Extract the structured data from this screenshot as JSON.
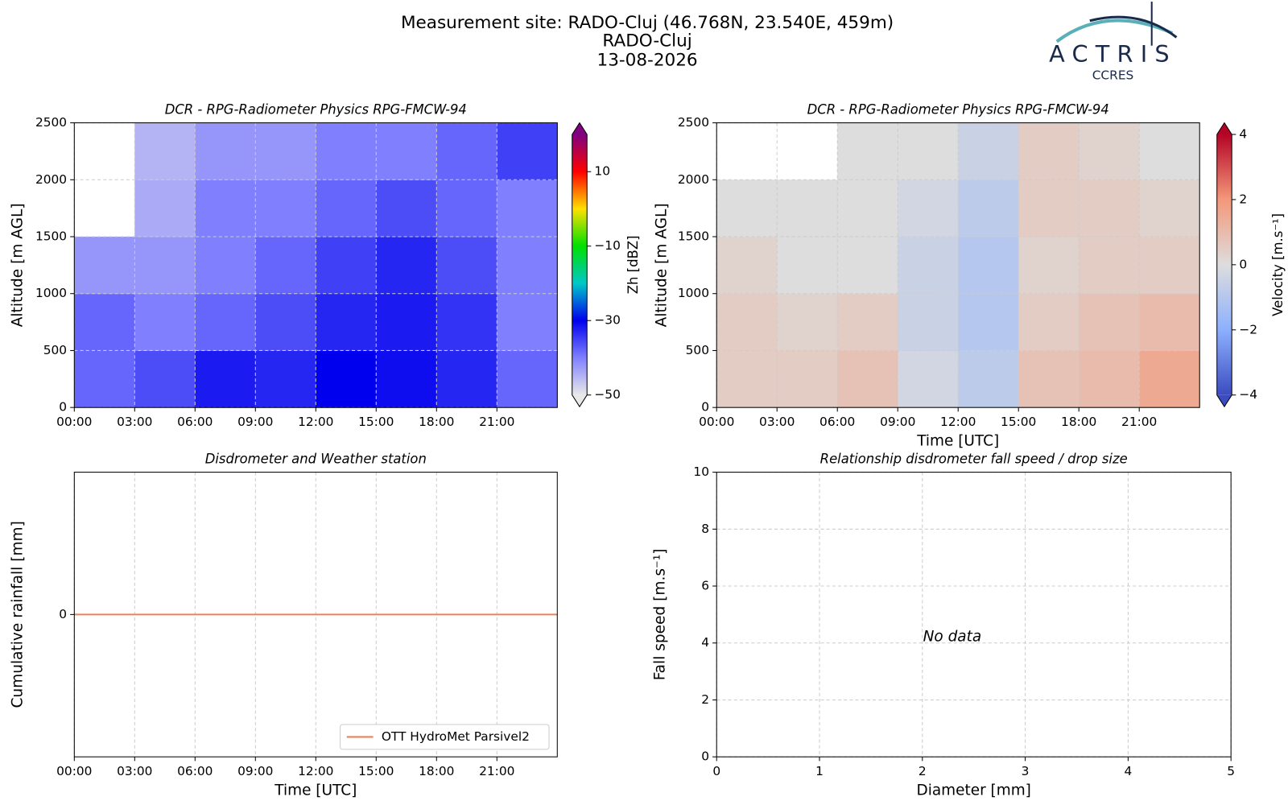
{
  "header": {
    "lines": [
      "Measurement site: RADO-Cluj (46.768N, 23.540E, 459m)",
      "RADO-Cluj",
      "13-08-2026"
    ]
  },
  "logo": {
    "name": "ACTRIS",
    "sub": "CCRES"
  },
  "chart_data": [
    {
      "type": "heatmap",
      "title": "DCR - RPG-Radiometer Physics RPG-FMCW-94",
      "ylabel": "Altitude [m AGL]",
      "x_bins": [
        0,
        3,
        6,
        9,
        12,
        15,
        18,
        21,
        24
      ],
      "y_bins": [
        0,
        500,
        1000,
        1500,
        2000,
        2500
      ],
      "z": [
        [
          -38,
          -36,
          -32,
          -33,
          -30,
          -31,
          -33,
          -38
        ],
        [
          -38,
          -40,
          -38,
          -36,
          -33,
          -32,
          -34,
          -40
        ],
        [
          -42,
          -42,
          -40,
          -38,
          -35,
          -33,
          -36,
          -40
        ],
        [
          null,
          -44,
          -40,
          -40,
          -38,
          -36,
          -38,
          -40
        ],
        [
          null,
          -45,
          -42,
          -42,
          -40,
          -40,
          -38,
          -35
        ]
      ],
      "xlim": [
        0,
        24
      ],
      "xticks": [
        {
          "value": 0,
          "label": "00:00"
        },
        {
          "value": 3,
          "label": "03:00"
        },
        {
          "value": 6,
          "label": "06:00"
        },
        {
          "value": 9,
          "label": "09:00"
        },
        {
          "value": 12,
          "label": "12:00"
        },
        {
          "value": 15,
          "label": "15:00"
        },
        {
          "value": 18,
          "label": "18:00"
        },
        {
          "value": 21,
          "label": "21:00"
        }
      ],
      "ylim": [
        0,
        2500
      ],
      "yticks": [
        0,
        500,
        1000,
        1500,
        2000,
        2500
      ],
      "grid": true,
      "colorbar": {
        "label": "Zh [dBZ]",
        "lim": [
          -50,
          20
        ],
        "ticks": [
          {
            "value": 10,
            "label": "10"
          },
          {
            "value": -10,
            "label": "−10"
          },
          {
            "value": -30,
            "label": "−30"
          },
          {
            "value": -50,
            "label": "−50"
          }
        ],
        "colors": [
          "#e8e8e8",
          "#8080ff",
          "#0000ee",
          "#00c8c8",
          "#00e000",
          "#ffe000",
          "#ff0000",
          "#800080"
        ]
      }
    },
    {
      "type": "heatmap",
      "title": "DCR - RPG-Radiometer Physics RPG-FMCW-94",
      "ylabel": "Altitude [m AGL]",
      "xlabel": "Time [UTC]",
      "x_bins": [
        0,
        3,
        6,
        9,
        12,
        15,
        18,
        21,
        24
      ],
      "y_bins": [
        0,
        500,
        1000,
        1500,
        2000,
        2500
      ],
      "z": [
        [
          0.5,
          0.5,
          0.8,
          -0.3,
          -0.8,
          0.8,
          1,
          1.5
        ],
        [
          0.5,
          0.3,
          0.5,
          -0.5,
          -1,
          0.5,
          0.8,
          1
        ],
        [
          0.3,
          0,
          0,
          -0.5,
          -1,
          0.3,
          0.5,
          0.5
        ],
        [
          0,
          0,
          0,
          -0.3,
          -0.8,
          0.5,
          0.5,
          0.3
        ],
        [
          null,
          null,
          0,
          0,
          -0.5,
          0.5,
          0.3,
          0
        ]
      ],
      "xlim": [
        0,
        24
      ],
      "xticks": [
        {
          "value": 0,
          "label": "00:00"
        },
        {
          "value": 3,
          "label": "03:00"
        },
        {
          "value": 6,
          "label": "06:00"
        },
        {
          "value": 9,
          "label": "09:00"
        },
        {
          "value": 12,
          "label": "12:00"
        },
        {
          "value": 15,
          "label": "15:00"
        },
        {
          "value": 18,
          "label": "18:00"
        },
        {
          "value": 21,
          "label": "21:00"
        }
      ],
      "ylim": [
        0,
        2500
      ],
      "yticks": [
        0,
        500,
        1000,
        1500,
        2000,
        2500
      ],
      "grid": true,
      "colorbar": {
        "label": "Velocity [m.s⁻¹]",
        "lim": [
          -4,
          4
        ],
        "ticks": [
          4,
          2,
          0,
          {
            "value": -2,
            "label": "−2"
          },
          {
            "value": -4,
            "label": "−4"
          }
        ],
        "colors": [
          "#3b4cc0",
          "#8db0fe",
          "#dddddd",
          "#f4987a",
          "#b40426"
        ]
      }
    },
    {
      "type": "line",
      "title": "Disdrometer and Weather station",
      "ylabel": "Cumulative rainfall [mm]",
      "xlabel": "Time [UTC]",
      "x": [
        0,
        24
      ],
      "series": [
        {
          "name": "OTT HydroMet Parsivel2",
          "color": "#e8825a",
          "values": [
            0,
            0
          ]
        }
      ],
      "xlim": [
        0,
        24
      ],
      "xticks": [
        {
          "value": 0,
          "label": "00:00"
        },
        {
          "value": 3,
          "label": "03:00"
        },
        {
          "value": 6,
          "label": "06:00"
        },
        {
          "value": 9,
          "label": "09:00"
        },
        {
          "value": 12,
          "label": "12:00"
        },
        {
          "value": 15,
          "label": "15:00"
        },
        {
          "value": 18,
          "label": "18:00"
        },
        {
          "value": 21,
          "label": "21:00"
        }
      ],
      "ylim": [
        -0.05,
        0.05
      ],
      "yticks": [
        0
      ],
      "grid": true,
      "legend": "lower right"
    },
    {
      "type": "scatter",
      "title": "Relationship disdrometer fall speed / drop size",
      "ylabel": "Fall speed [m.s⁻¹]",
      "xlabel": "Diameter [mm]",
      "x": [],
      "values": [],
      "annotation": "No data",
      "xlim": [
        0,
        5
      ],
      "xticks": [
        0,
        1,
        2,
        3,
        4,
        5
      ],
      "ylim": [
        0,
        10
      ],
      "yticks": [
        0,
        2,
        4,
        6,
        8,
        10
      ],
      "grid": true
    }
  ]
}
